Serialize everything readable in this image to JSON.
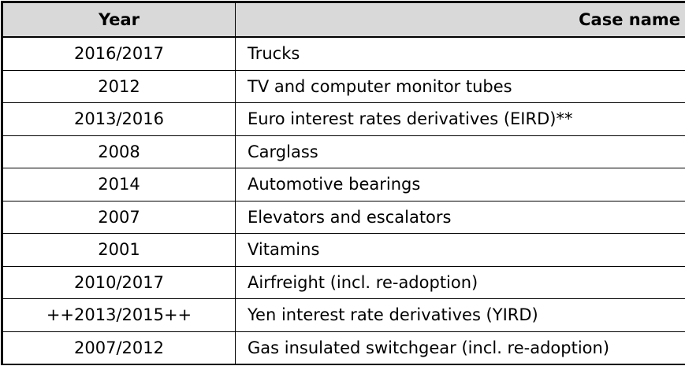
{
  "table": {
    "header": [
      "Year",
      "Case name"
    ],
    "rows": [
      [
        "2016/2017",
        "Trucks"
      ],
      [
        "2012",
        "TV and computer monitor tubes"
      ],
      [
        "2013/2016",
        "Euro interest rates derivatives (EIRD)**"
      ],
      [
        "2008",
        "Carglass"
      ],
      [
        "2014",
        "Automotive bearings"
      ],
      [
        "2007",
        "Elevators and escalators"
      ],
      [
        "2001",
        "Vitamins"
      ],
      [
        "2010/2017",
        "Airfreight (incl. re-adoption)"
      ],
      [
        "++2013/2015++",
        "Yen interest rate derivatives (YIRD)"
      ],
      [
        "2007/2012",
        "Gas insulated switchgear (incl. re-adoption)"
      ]
    ]
  }
}
